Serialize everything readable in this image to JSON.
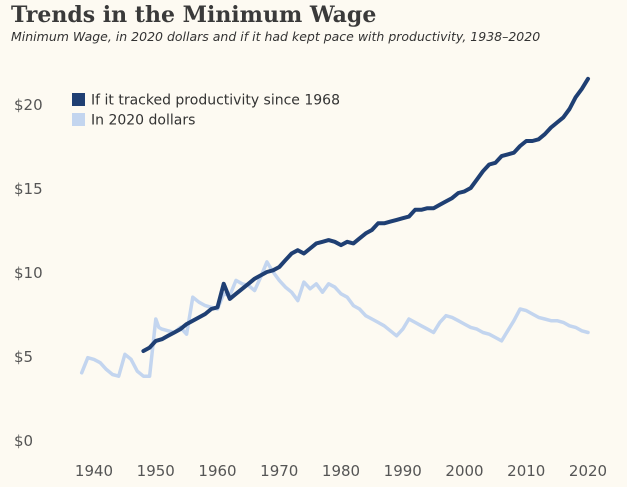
{
  "chart_data": {
    "type": "line",
    "title": "Trends in the Minimum Wage",
    "subtitle": "Minimum Wage, in 2020 dollars and if it had kept pace with productivity, 1938–2020",
    "xlabel": "",
    "ylabel": "",
    "xlim": [
      1935,
      2023
    ],
    "ylim": [
      0,
      23
    ],
    "x_ticks": [
      1940,
      1950,
      1960,
      1970,
      1980,
      1990,
      2000,
      2010,
      2020
    ],
    "x_tick_labels": [
      "1940",
      "1950",
      "1960",
      "1970",
      "1980",
      "1990",
      "2000",
      "2010",
      "2020"
    ],
    "y_ticks": [
      0,
      5,
      10,
      15,
      20
    ],
    "y_tick_labels": [
      "$0",
      "$5",
      "$10",
      "$15",
      "$20"
    ],
    "grid": false,
    "legend_position": "top-left",
    "series": [
      {
        "name": "If it tracked productivity since 1968",
        "color": "#1f3f73",
        "x": [
          1948,
          1949,
          1950,
          1951,
          1952,
          1953,
          1954,
          1955,
          1956,
          1957,
          1958,
          1959,
          1960,
          1961,
          1962,
          1963,
          1964,
          1965,
          1966,
          1967,
          1968,
          1969,
          1970,
          1971,
          1972,
          1973,
          1974,
          1975,
          1976,
          1977,
          1978,
          1979,
          1980,
          1981,
          1982,
          1983,
          1984,
          1985,
          1986,
          1987,
          1988,
          1989,
          1990,
          1991,
          1992,
          1993,
          1994,
          1995,
          1996,
          1997,
          1998,
          1999,
          2000,
          2001,
          2002,
          2003,
          2004,
          2005,
          2006,
          2007,
          2008,
          2009,
          2010,
          2011,
          2012,
          2013,
          2014,
          2015,
          2016,
          2017,
          2018,
          2019,
          2020
        ],
        "y": [
          5.3,
          5.5,
          5.9,
          6.0,
          6.2,
          6.4,
          6.6,
          6.9,
          7.1,
          7.3,
          7.5,
          7.8,
          7.9,
          9.3,
          8.4,
          8.7,
          9.0,
          9.3,
          9.6,
          9.8,
          10.0,
          10.1,
          10.3,
          10.7,
          11.1,
          11.3,
          11.1,
          11.4,
          11.7,
          11.8,
          11.9,
          11.8,
          11.6,
          11.8,
          11.7,
          12.0,
          12.3,
          12.5,
          12.9,
          12.9,
          13.0,
          13.1,
          13.2,
          13.3,
          13.7,
          13.7,
          13.8,
          13.8,
          14.0,
          14.2,
          14.4,
          14.7,
          14.8,
          15.0,
          15.5,
          16.0,
          16.4,
          16.5,
          16.9,
          17.0,
          17.1,
          17.5,
          17.8,
          17.8,
          17.9,
          18.2,
          18.6,
          18.9,
          19.2,
          19.7,
          20.4,
          20.9,
          21.5
        ]
      },
      {
        "name": "In 2020 dollars",
        "color": "#c3d5ef",
        "x": [
          1938,
          1939,
          1940,
          1941,
          1942,
          1943,
          1944,
          1945,
          1946,
          1947,
          1948,
          1949,
          1950,
          1950.5,
          1951,
          1952,
          1953,
          1954,
          1955,
          1956,
          1957,
          1958,
          1959,
          1960,
          1961,
          1962,
          1963,
          1964,
          1965,
          1966,
          1967,
          1968,
          1969,
          1970,
          1971,
          1972,
          1973,
          1974,
          1975,
          1976,
          1977,
          1978,
          1979,
          1980,
          1981,
          1982,
          1983,
          1984,
          1985,
          1986,
          1987,
          1988,
          1989,
          1990,
          1991,
          1992,
          1993,
          1994,
          1995,
          1996,
          1997,
          1998,
          1999,
          2000,
          2001,
          2002,
          2003,
          2004,
          2005,
          2006,
          2007,
          2008,
          2009,
          2010,
          2011,
          2012,
          2013,
          2014,
          2015,
          2016,
          2017,
          2018,
          2019,
          2020
        ],
        "y": [
          4.0,
          4.9,
          4.8,
          4.6,
          4.2,
          3.9,
          3.8,
          5.1,
          4.8,
          4.1,
          3.8,
          3.8,
          7.2,
          6.7,
          6.6,
          6.5,
          6.4,
          6.7,
          6.3,
          8.5,
          8.2,
          8.0,
          7.9,
          7.8,
          8.7,
          8.6,
          9.5,
          9.3,
          9.2,
          8.9,
          9.7,
          10.6,
          10.0,
          9.5,
          9.1,
          8.8,
          8.3,
          9.4,
          9.0,
          9.3,
          8.8,
          9.3,
          9.1,
          8.7,
          8.5,
          8.0,
          7.8,
          7.4,
          7.2,
          7.0,
          6.8,
          6.5,
          6.2,
          6.6,
          7.2,
          7.0,
          6.8,
          6.6,
          6.4,
          7.0,
          7.4,
          7.3,
          7.1,
          6.9,
          6.7,
          6.6,
          6.4,
          6.3,
          6.1,
          5.9,
          6.5,
          7.1,
          7.8,
          7.7,
          7.5,
          7.3,
          7.2,
          7.1,
          7.1,
          7.0,
          6.8,
          6.7,
          6.5,
          6.4
        ]
      }
    ]
  }
}
